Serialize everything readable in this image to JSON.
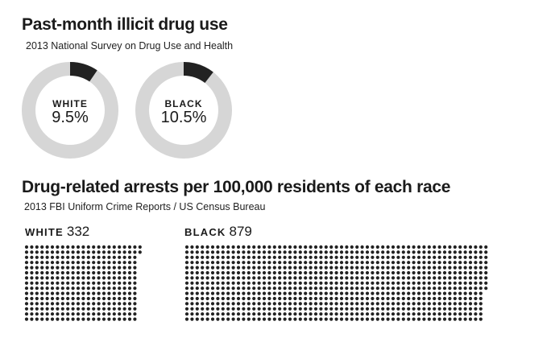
{
  "header": {
    "title": "Past-month illicit drug use",
    "subtitle": "2013 National Survey on Drug Use and Health"
  },
  "section2": {
    "title": "Drug-related arrests per 100,000 residents of each race",
    "subtitle": "2013 FBI Uniform Crime Reports / US Census Bureau"
  },
  "colors": {
    "accent": "#222222",
    "track": "#d6d6d6",
    "dot": "#222222"
  },
  "chart_data": [
    {
      "type": "pie",
      "title": "Past-month illicit drug use",
      "subtitle": "2013 National Survey on Drug Use and Health",
      "unit": "%",
      "series": [
        {
          "name": "WHITE",
          "value": 9.5,
          "label": "9.5%"
        },
        {
          "name": "BLACK",
          "value": 10.5,
          "label": "10.5%"
        }
      ]
    },
    {
      "type": "bar",
      "title": "Drug-related arrests per 100,000 residents of each race",
      "subtitle": "2013 FBI Uniform Crime Reports / US Census Bureau",
      "categories": [
        "WHITE",
        "BLACK"
      ],
      "values": [
        332,
        879
      ],
      "value_labels": [
        "332",
        "879"
      ],
      "encoding": "one dot per arrest per 100,000 residents"
    }
  ]
}
